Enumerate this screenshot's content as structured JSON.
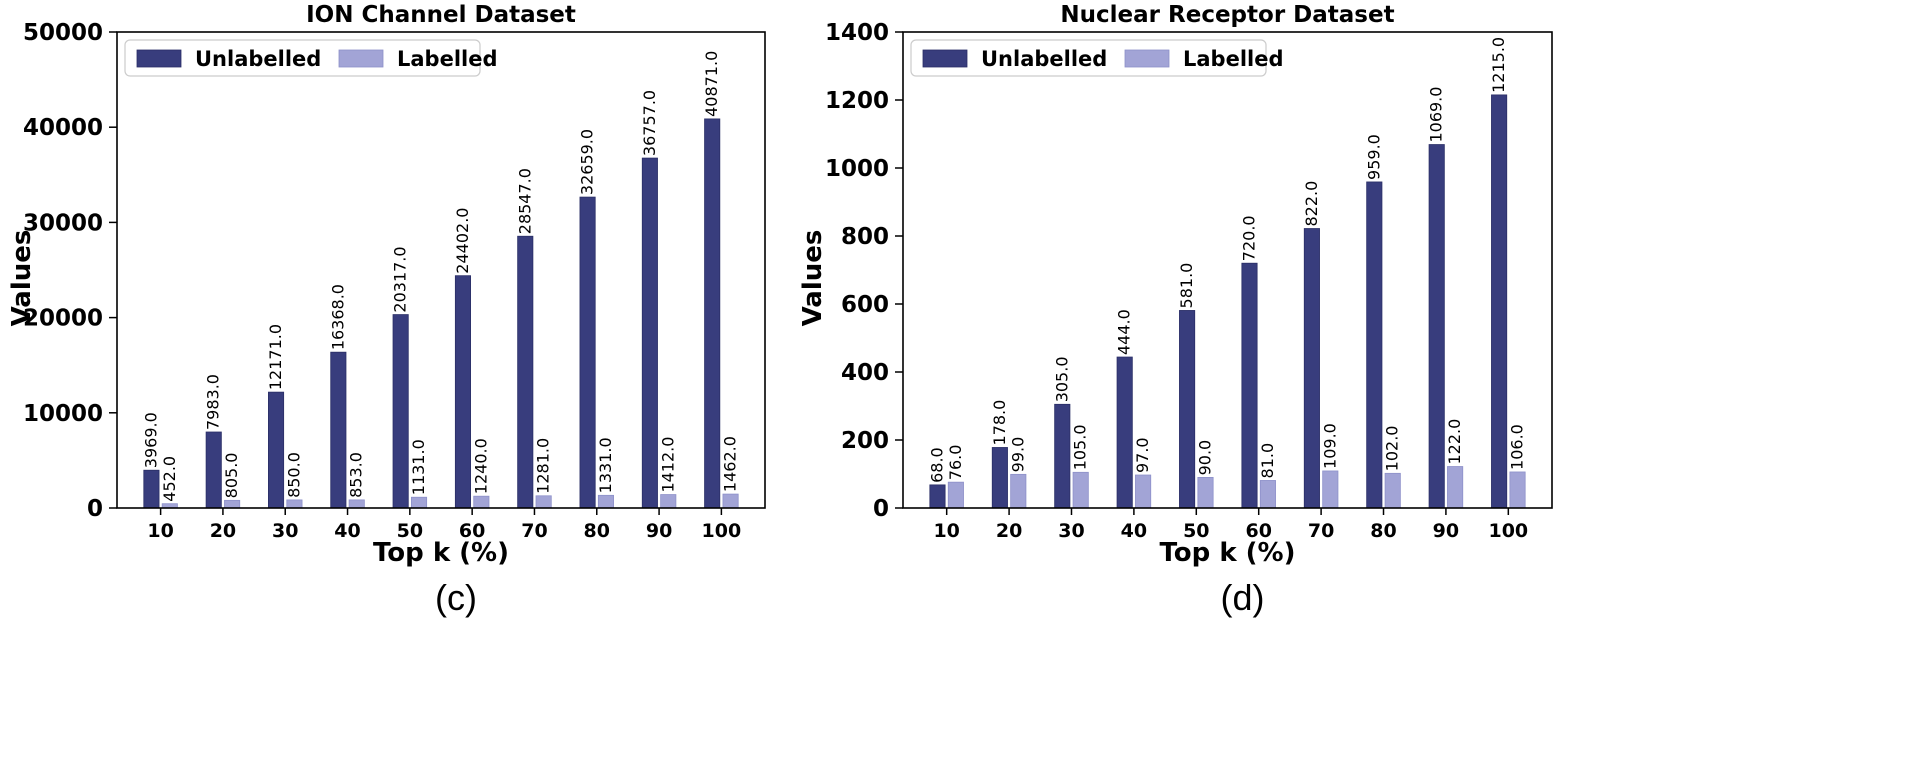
{
  "chart_data": [
    {
      "type": "bar",
      "panel": "(c)",
      "title": "ION Channel Dataset",
      "xlabel": "Top k (%)",
      "ylabel": "Values",
      "categories": [
        "10",
        "20",
        "30",
        "40",
        "50",
        "60",
        "70",
        "80",
        "90",
        "100"
      ],
      "ylim": [
        0,
        50000
      ],
      "yticks": [
        0,
        10000,
        20000,
        30000,
        40000,
        50000
      ],
      "ytick_labels": [
        "0",
        "10000",
        "20000",
        "30000",
        "40000",
        "50000"
      ],
      "legend_position": "top-left",
      "series": [
        {
          "name": "Unlabelled",
          "color": "#383d7d",
          "values": [
            3969.0,
            7983.0,
            12171.0,
            16368.0,
            20317.0,
            24402.0,
            28547.0,
            32659.0,
            36757.0,
            40871.0
          ],
          "labels": [
            "3969.0",
            "7983.0",
            "12171.0",
            "16368.0",
            "20317.0",
            "24402.0",
            "28547.0",
            "32659.0",
            "36757.0",
            "40871.0"
          ]
        },
        {
          "name": "Labelled",
          "color": "#a2a4d6",
          "values": [
            452.0,
            805.0,
            850.0,
            853.0,
            1131.0,
            1240.0,
            1281.0,
            1331.0,
            1412.0,
            1462.0
          ],
          "labels": [
            "452.0",
            "805.0",
            "850.0",
            "853.0",
            "1131.0",
            "1240.0",
            "1281.0",
            "1331.0",
            "1412.0",
            "1462.0"
          ]
        }
      ]
    },
    {
      "type": "bar",
      "panel": "(d)",
      "title": "Nuclear Receptor Dataset",
      "xlabel": "Top k (%)",
      "ylabel": "Values",
      "categories": [
        "10",
        "20",
        "30",
        "40",
        "50",
        "60",
        "70",
        "80",
        "90",
        "100"
      ],
      "ylim": [
        0,
        1400
      ],
      "yticks": [
        0,
        200,
        400,
        600,
        800,
        1000,
        1200,
        1400
      ],
      "ytick_labels": [
        "0",
        "200",
        "400",
        "600",
        "800",
        "1000",
        "1200",
        "1400"
      ],
      "legend_position": "top-left",
      "series": [
        {
          "name": "Unlabelled",
          "color": "#383d7d",
          "values": [
            68.0,
            178.0,
            305.0,
            444.0,
            581.0,
            720.0,
            822.0,
            959.0,
            1069.0,
            1215.0
          ],
          "labels": [
            "68.0",
            "178.0",
            "305.0",
            "444.0",
            "581.0",
            "720.0",
            "822.0",
            "959.0",
            "1069.0",
            "1215.0"
          ]
        },
        {
          "name": "Labelled",
          "color": "#a2a4d6",
          "values": [
            76.0,
            99.0,
            105.0,
            97.0,
            90.0,
            81.0,
            109.0,
            102.0,
            122.0,
            106.0
          ],
          "labels": [
            "76.0",
            "99.0",
            "105.0",
            "97.0",
            "90.0",
            "81.0",
            "109.0",
            "102.0",
            "122.0",
            "106.0"
          ]
        }
      ]
    }
  ]
}
